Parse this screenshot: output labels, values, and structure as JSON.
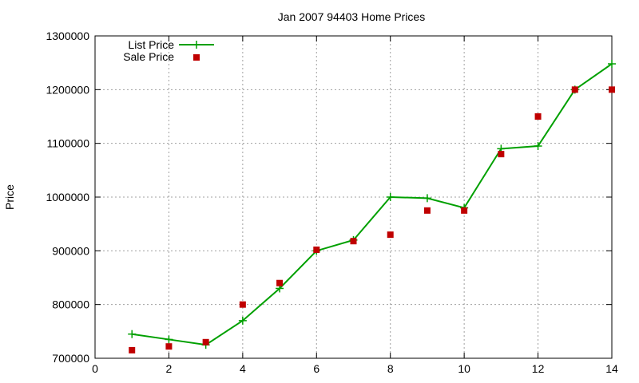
{
  "chart_data": {
    "type": "line",
    "title": "Jan 2007 94403 Home Prices",
    "xlabel": "",
    "ylabel": "Price",
    "xlim": [
      0,
      14
    ],
    "ylim": [
      700000,
      1300000
    ],
    "xticks": [
      0,
      2,
      4,
      6,
      8,
      10,
      12,
      14
    ],
    "yticks": [
      700000,
      800000,
      900000,
      1000000,
      1100000,
      1200000,
      1300000
    ],
    "xtick_labels": [
      "0",
      "2",
      "4",
      "6",
      "8",
      "10",
      "12",
      "14"
    ],
    "ytick_labels": [
      "700000",
      "800000",
      "900000",
      "1000000",
      "1100000",
      "1200000",
      "1300000"
    ],
    "grid": true,
    "legend_position": "top-left",
    "series": [
      {
        "name": "List Price",
        "style": "line+cross",
        "color": "#00a000",
        "x": [
          1,
          2,
          3,
          4,
          5,
          6,
          7,
          8,
          9,
          10,
          11,
          12,
          13,
          14
        ],
        "y": [
          745000,
          735000,
          725000,
          770000,
          830000,
          900000,
          920000,
          1000000,
          998000,
          980000,
          1090000,
          1095000,
          1200000,
          1248000
        ]
      },
      {
        "name": "Sale Price",
        "style": "square",
        "color": "#c00000",
        "x": [
          1,
          2,
          3,
          4,
          5,
          6,
          7,
          8,
          9,
          10,
          11,
          12,
          13,
          14
        ],
        "y": [
          715000,
          722000,
          730000,
          800000,
          840000,
          902000,
          918000,
          930000,
          975000,
          975000,
          1080000,
          1150000,
          1200000,
          1200000
        ]
      }
    ]
  }
}
